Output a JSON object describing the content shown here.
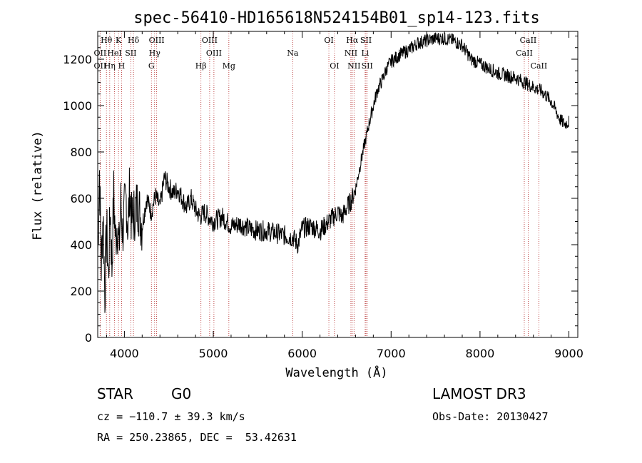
{
  "chart_data": {
    "type": "line",
    "title": "spec-56410-HD165618N524154B01_sp14-123.fits",
    "xlabel": "Wavelength (Å)",
    "ylabel": "Flux (relative)",
    "xlim": [
      3700,
      9100
    ],
    "ylim": [
      0,
      1320
    ],
    "xticks": [
      4000,
      5000,
      6000,
      7000,
      8000,
      9000
    ],
    "yticks": [
      0,
      200,
      400,
      600,
      800,
      1000,
      1200
    ],
    "series": [
      {
        "name": "flux",
        "x": [
          3700,
          3720,
          3740,
          3760,
          3780,
          3800,
          3820,
          3840,
          3860,
          3880,
          3900,
          3920,
          3940,
          3960,
          3980,
          4000,
          4020,
          4040,
          4060,
          4080,
          4100,
          4150,
          4200,
          4250,
          4300,
          4350,
          4400,
          4450,
          4500,
          4550,
          4600,
          4650,
          4700,
          4750,
          4800,
          4850,
          4900,
          4950,
          5000,
          5100,
          5200,
          5300,
          5400,
          5500,
          5600,
          5700,
          5800,
          5900,
          5950,
          6000,
          6100,
          6200,
          6300,
          6400,
          6450,
          6500,
          6550,
          6600,
          6650,
          6700,
          6750,
          6800,
          6850,
          6900,
          6950,
          7000,
          7100,
          7200,
          7300,
          7400,
          7500,
          7600,
          7700,
          7800,
          7900,
          8000,
          8100,
          8200,
          8300,
          8400,
          8500,
          8600,
          8700,
          8800,
          8850,
          8900,
          8950,
          9000
        ],
        "y": [
          350,
          720,
          300,
          550,
          190,
          480,
          250,
          560,
          300,
          620,
          420,
          500,
          380,
          580,
          450,
          540,
          600,
          470,
          650,
          500,
          520,
          580,
          480,
          600,
          540,
          610,
          560,
          690,
          650,
          620,
          640,
          600,
          560,
          600,
          550,
          520,
          540,
          520,
          500,
          520,
          480,
          490,
          470,
          460,
          460,
          450,
          440,
          430,
          400,
          470,
          480,
          460,
          500,
          540,
          520,
          560,
          590,
          640,
          740,
          830,
          920,
          1000,
          1070,
          1110,
          1160,
          1190,
          1220,
          1240,
          1270,
          1280,
          1290,
          1290,
          1280,
          1260,
          1200,
          1180,
          1160,
          1140,
          1130,
          1120,
          1100,
          1080,
          1060,
          1020,
          980,
          940,
          920,
          930
        ]
      }
    ],
    "spectral_lines": [
      {
        "label": "Hθ",
        "wavelength": 3798,
        "row": 0
      },
      {
        "label": "K",
        "wavelength": 3934,
        "row": 0
      },
      {
        "label": "Hδ",
        "wavelength": 4102,
        "row": 0
      },
      {
        "label": "OIII",
        "wavelength": 4363,
        "row": 0
      },
      {
        "label": "OIII",
        "wavelength": 4959,
        "row": 0
      },
      {
        "label": "Na",
        "wavelength": 5893,
        "row": 1
      },
      {
        "label": "OI",
        "wavelength": 6300,
        "row": 0
      },
      {
        "label": "Hα",
        "wavelength": 6563,
        "row": 0
      },
      {
        "label": "SII",
        "wavelength": 6717,
        "row": 0
      },
      {
        "label": "CaII",
        "wavelength": 8542,
        "row": 0
      },
      {
        "label": "OII",
        "wavelength": 3727,
        "row": 1
      },
      {
        "label": "HeI",
        "wavelength": 3889,
        "row": 1
      },
      {
        "label": "SII",
        "wavelength": 4072,
        "row": 1
      },
      {
        "label": "Hγ",
        "wavelength": 4340,
        "row": 1
      },
      {
        "label": "OIII",
        "wavelength": 5007,
        "row": 1
      },
      {
        "label": "NII",
        "wavelength": 6548,
        "row": 1
      },
      {
        "label": "Li",
        "wavelength": 6708,
        "row": 1
      },
      {
        "label": "CaII",
        "wavelength": 8498,
        "row": 1
      },
      {
        "label": "OII",
        "wavelength": 3727,
        "row": 2
      },
      {
        "label": "Hη",
        "wavelength": 3835,
        "row": 2
      },
      {
        "label": "H",
        "wavelength": 3968,
        "row": 2
      },
      {
        "label": "G",
        "wavelength": 4304,
        "row": 2
      },
      {
        "label": "Hβ",
        "wavelength": 4861,
        "row": 2
      },
      {
        "label": "Mg",
        "wavelength": 5175,
        "row": 2
      },
      {
        "label": "OI",
        "wavelength": 6363,
        "row": 2
      },
      {
        "label": "NII",
        "wavelength": 6583,
        "row": 2
      },
      {
        "label": "SII",
        "wavelength": 6731,
        "row": 2
      },
      {
        "label": "CaII",
        "wavelength": 8662,
        "row": 2
      }
    ],
    "line_color": "#000000",
    "marker_color": "#b22222"
  },
  "info": {
    "object_type": "STAR",
    "subclass": "G0",
    "survey": "LAMOST DR3",
    "redshift": "cz = −110.7 ± 39.3 km/s",
    "obs_date": "Obs-Date: 20130427",
    "coords": "RA = 250.23865, DEC =  53.42631"
  }
}
